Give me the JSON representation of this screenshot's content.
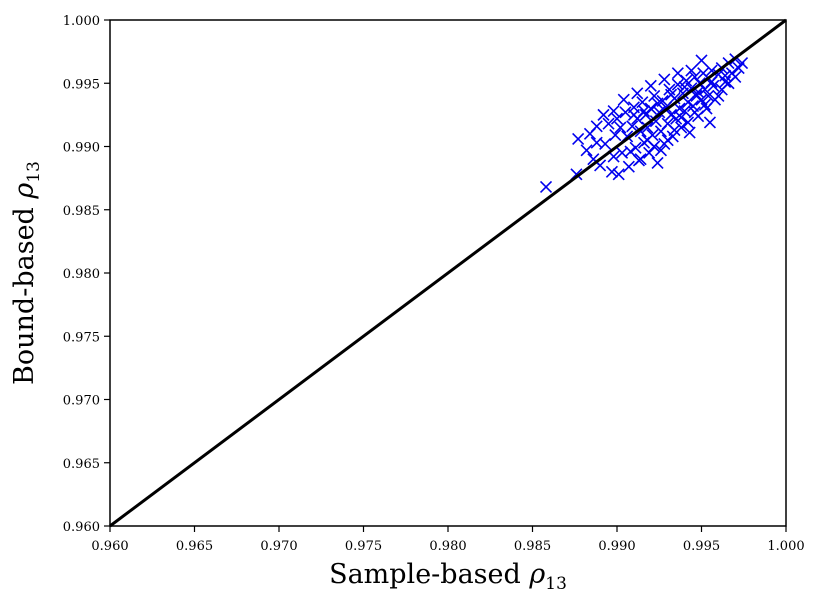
{
  "chart_data": {
    "type": "scatter",
    "xlabel": "Sample-based ρ13",
    "ylabel": "Bound-based ρ13",
    "xlabel_parts": {
      "text": "Sample-based ",
      "symbol": "ρ",
      "subscript": "13"
    },
    "ylabel_parts": {
      "text": "Bound-based ",
      "symbol": "ρ",
      "subscript": "13"
    },
    "xlim": [
      0.96,
      1.0
    ],
    "ylim": [
      0.96,
      1.0
    ],
    "x_ticks": [
      "0.960",
      "0.965",
      "0.970",
      "0.975",
      "0.980",
      "0.985",
      "0.990",
      "0.995",
      "1.000"
    ],
    "y_ticks": [
      "0.960",
      "0.965",
      "0.970",
      "0.975",
      "0.980",
      "0.985",
      "0.990",
      "0.995",
      "1.000"
    ],
    "grid": false,
    "marker": "x",
    "marker_color": "#0000ee",
    "reference_line": {
      "x": [
        0.96,
        1.0
      ],
      "y": [
        0.96,
        1.0
      ],
      "color": "#000000"
    },
    "series": [
      {
        "points": [
          [
            0.9858,
            0.9868
          ],
          [
            0.9876,
            0.9878
          ],
          [
            0.9877,
            0.9906
          ],
          [
            0.9882,
            0.9897
          ],
          [
            0.9886,
            0.989
          ],
          [
            0.9888,
            0.9916
          ],
          [
            0.989,
            0.9885
          ],
          [
            0.9893,
            0.9902
          ],
          [
            0.9895,
            0.9918
          ],
          [
            0.9897,
            0.988
          ],
          [
            0.9899,
            0.9909
          ],
          [
            0.99,
            0.9922
          ],
          [
            0.9901,
            0.9878
          ],
          [
            0.9903,
            0.9895
          ],
          [
            0.9905,
            0.9927
          ],
          [
            0.9906,
            0.9908
          ],
          [
            0.9907,
            0.9884
          ],
          [
            0.9909,
            0.9916
          ],
          [
            0.991,
            0.9931
          ],
          [
            0.9911,
            0.9899
          ],
          [
            0.9912,
            0.9922
          ],
          [
            0.9913,
            0.9889
          ],
          [
            0.9914,
            0.9912
          ],
          [
            0.9915,
            0.9935
          ],
          [
            0.9916,
            0.9903
          ],
          [
            0.9917,
            0.9925
          ],
          [
            0.9918,
            0.9915
          ],
          [
            0.9919,
            0.9895
          ],
          [
            0.992,
            0.993
          ],
          [
            0.9921,
            0.9909
          ],
          [
            0.9922,
            0.994
          ],
          [
            0.9923,
            0.992
          ],
          [
            0.9924,
            0.9887
          ],
          [
            0.9925,
            0.9927
          ],
          [
            0.9926,
            0.9912
          ],
          [
            0.9927,
            0.9936
          ],
          [
            0.9928,
            0.9902
          ],
          [
            0.9929,
            0.9931
          ],
          [
            0.993,
            0.9918
          ],
          [
            0.9931,
            0.9945
          ],
          [
            0.9932,
            0.9925
          ],
          [
            0.9933,
            0.9908
          ],
          [
            0.9934,
            0.9938
          ],
          [
            0.9935,
            0.9922
          ],
          [
            0.9936,
            0.9949
          ],
          [
            0.9937,
            0.993
          ],
          [
            0.9938,
            0.9915
          ],
          [
            0.9939,
            0.9942
          ],
          [
            0.994,
            0.9928
          ],
          [
            0.9941,
            0.9952
          ],
          [
            0.9942,
            0.9935
          ],
          [
            0.9943,
            0.9911
          ],
          [
            0.9944,
            0.9946
          ],
          [
            0.9945,
            0.9932
          ],
          [
            0.9946,
            0.9955
          ],
          [
            0.9947,
            0.994
          ],
          [
            0.9948,
            0.9924
          ],
          [
            0.9949,
            0.995
          ],
          [
            0.995,
            0.9937
          ],
          [
            0.9951,
            0.9958
          ],
          [
            0.9952,
            0.9945
          ],
          [
            0.9953,
            0.993
          ],
          [
            0.9954,
            0.9954
          ],
          [
            0.9955,
            0.9919
          ],
          [
            0.9956,
            0.996
          ],
          [
            0.9957,
            0.9948
          ],
          [
            0.9958,
            0.9937
          ],
          [
            0.996,
            0.9957
          ],
          [
            0.9962,
            0.9962
          ],
          [
            0.9964,
            0.9951
          ],
          [
            0.9966,
            0.9966
          ],
          [
            0.9968,
            0.9958
          ],
          [
            0.997,
            0.9969
          ],
          [
            0.9972,
            0.9962
          ],
          [
            0.995,
            0.9968
          ],
          [
            0.9944,
            0.996
          ],
          [
            0.9936,
            0.9958
          ],
          [
            0.9928,
            0.9953
          ],
          [
            0.992,
            0.9948
          ],
          [
            0.9912,
            0.9942
          ],
          [
            0.9904,
            0.9937
          ],
          [
            0.9898,
            0.9928
          ],
          [
            0.9892,
            0.9925
          ],
          [
            0.9888,
            0.9903
          ],
          [
            0.9884,
            0.991
          ],
          [
            0.9908,
            0.9896
          ],
          [
            0.9918,
            0.9905
          ],
          [
            0.9926,
            0.9897
          ],
          [
            0.9934,
            0.9913
          ],
          [
            0.9942,
            0.9919
          ],
          [
            0.9954,
            0.994
          ],
          [
            0.9962,
            0.9945
          ],
          [
            0.9916,
            0.9928
          ],
          [
            0.9924,
            0.9934
          ],
          [
            0.9932,
            0.9941
          ],
          [
            0.994,
            0.9947
          ],
          [
            0.9948,
            0.9943
          ],
          [
            0.9956,
            0.9951
          ],
          [
            0.9964,
            0.9956
          ],
          [
            0.991,
            0.9925
          ],
          [
            0.9902,
            0.9915
          ],
          [
            0.9898,
            0.9892
          ],
          [
            0.9914,
            0.989
          ],
          [
            0.9922,
            0.99
          ],
          [
            0.993,
            0.9905
          ],
          [
            0.9938,
            0.9923
          ],
          [
            0.9946,
            0.9927
          ],
          [
            0.9952,
            0.9933
          ],
          [
            0.996,
            0.994
          ],
          [
            0.9966,
            0.995
          ],
          [
            0.997,
            0.9955
          ],
          [
            0.9974,
            0.9966
          ]
        ]
      }
    ]
  }
}
